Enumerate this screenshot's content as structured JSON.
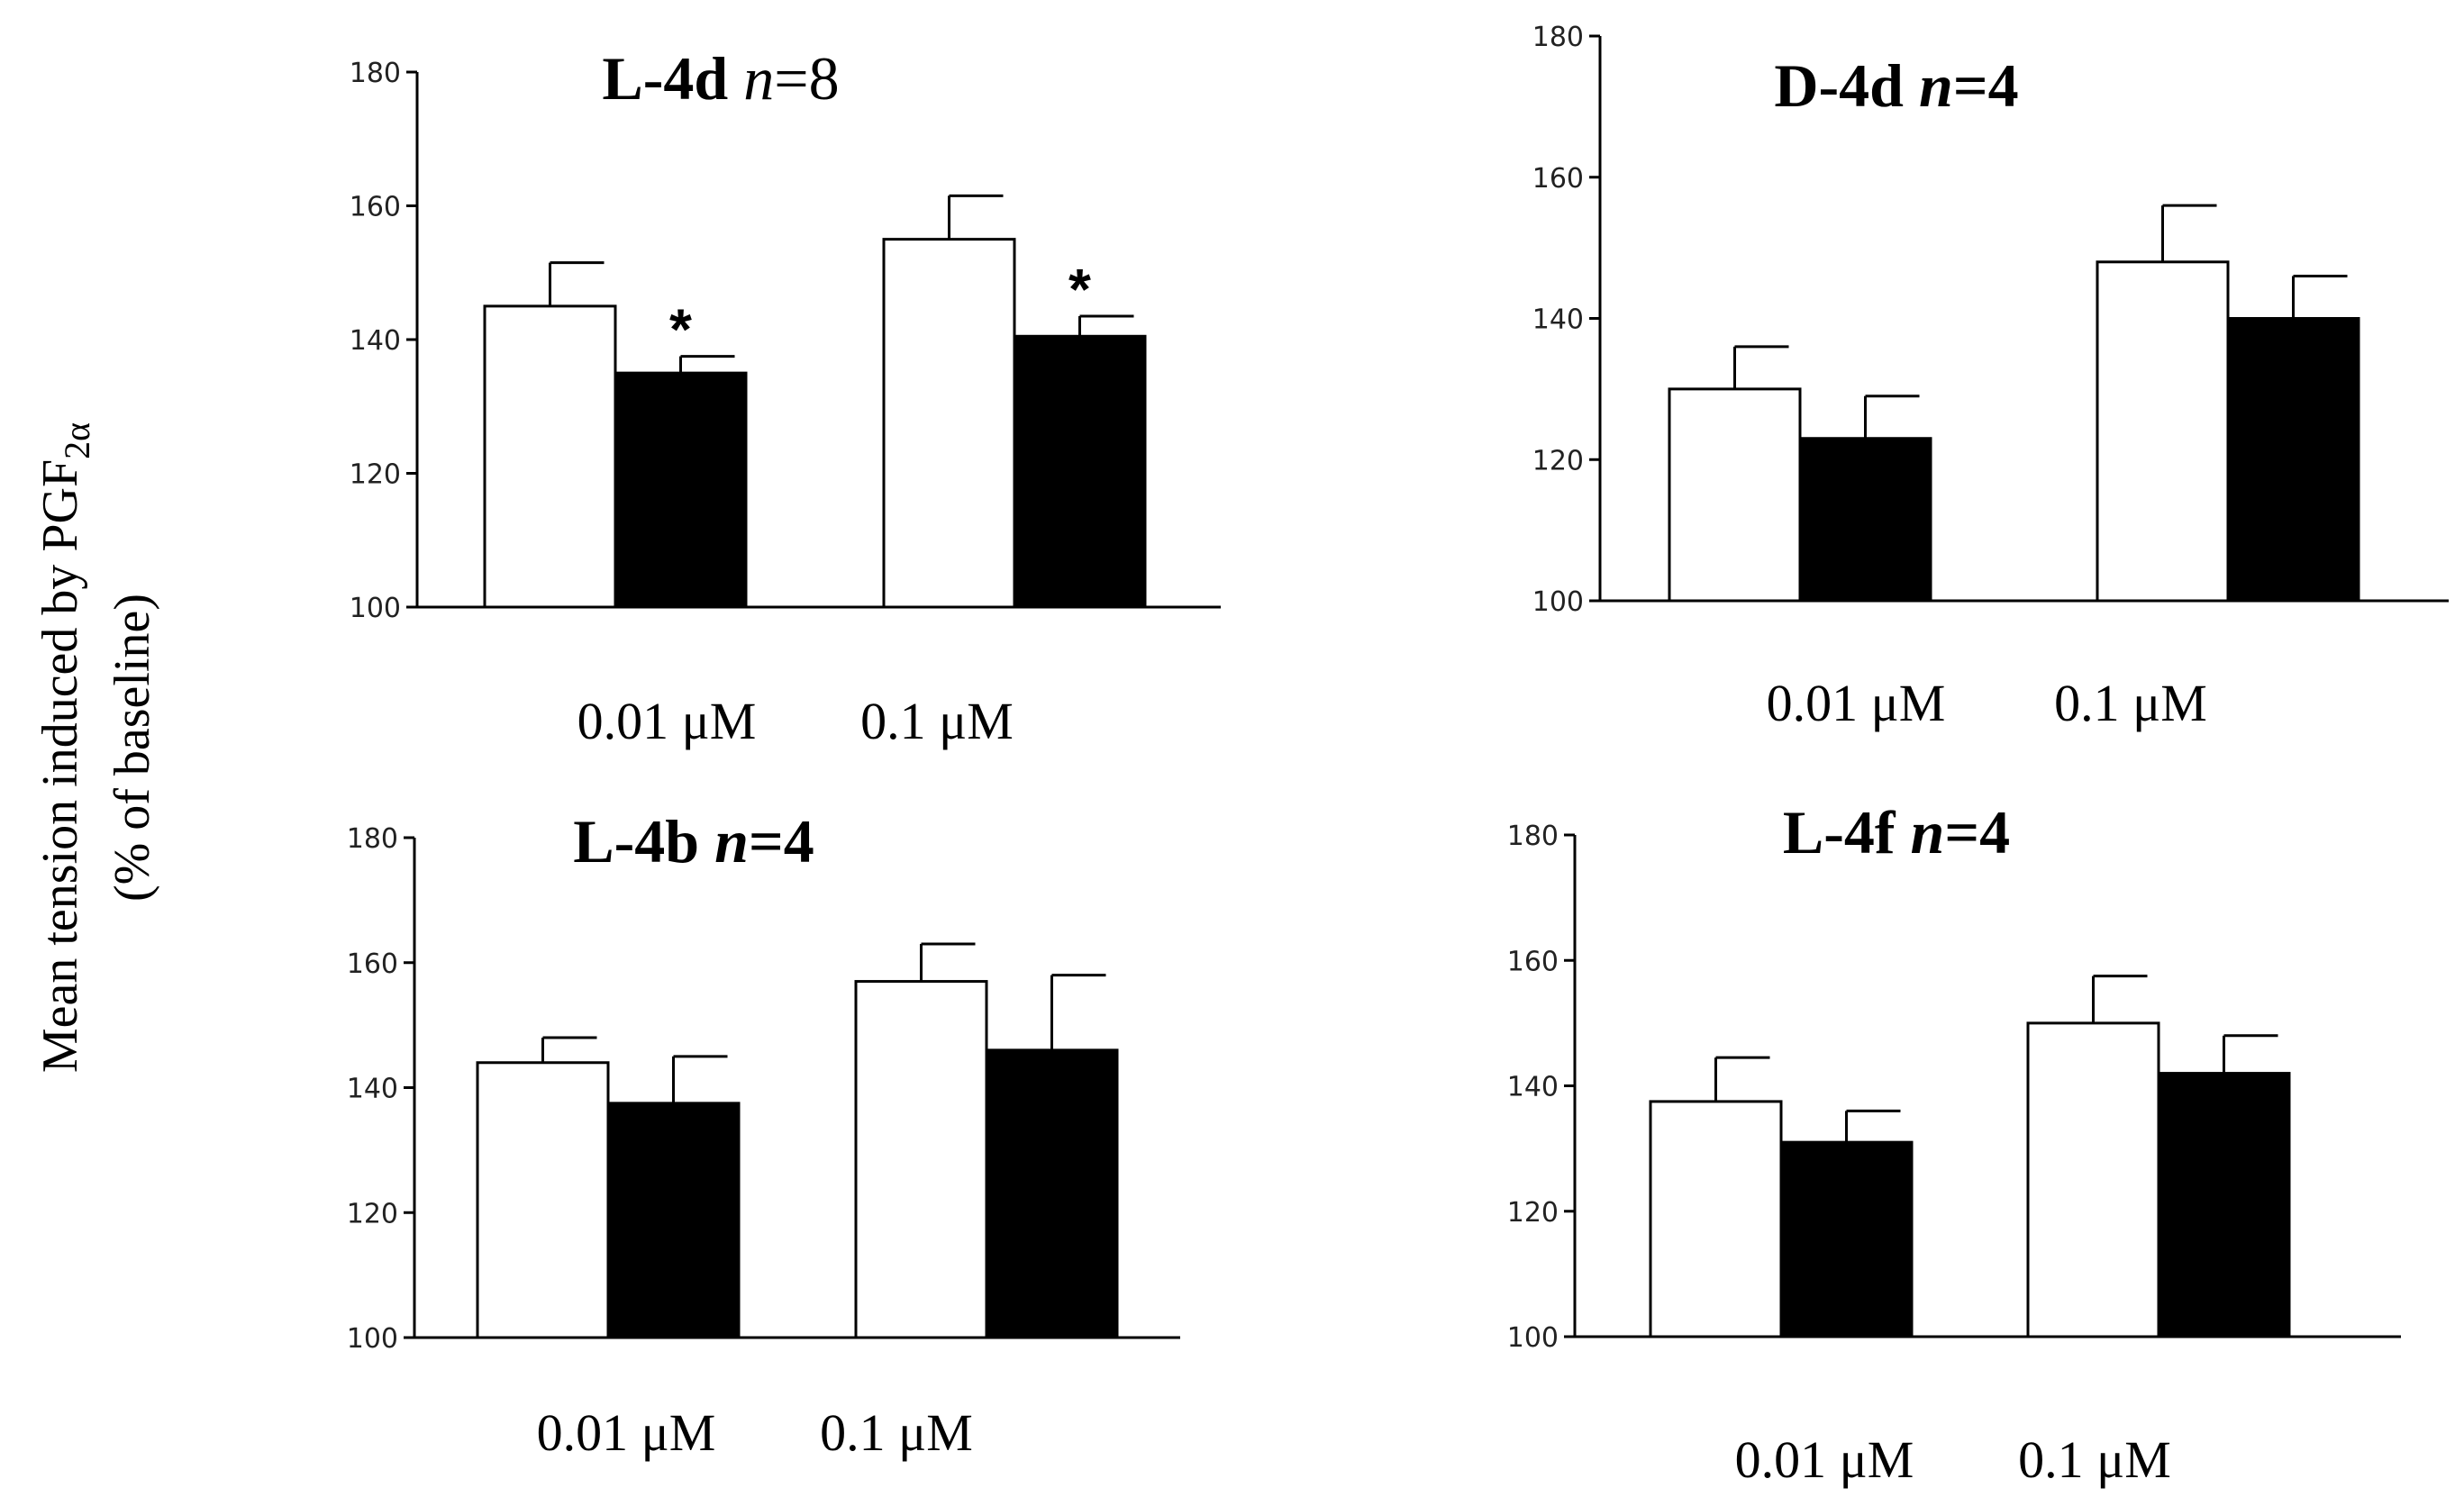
{
  "y_axis_label": {
    "line1_main": "Mean tension induced by PGF",
    "line1_sub": "2α",
    "line2": "(% of baseline)"
  },
  "chart_data": [
    {
      "type": "bar",
      "title": "L-4d",
      "title_n": "n",
      "title_eq": "=8",
      "categories": [
        "0.01 μM",
        "0.1 μM"
      ],
      "ylim": [
        100,
        180
      ],
      "yticks": [
        "100",
        "120",
        "140",
        "160",
        "180"
      ],
      "series": [
        {
          "name": "open",
          "fill": "#ffffff",
          "values": [
            145,
            155
          ],
          "errors": [
            6.5,
            6.5
          ],
          "significant": [
            false,
            false
          ]
        },
        {
          "name": "filled",
          "fill": "#000000",
          "values": [
            135,
            140.5
          ],
          "errors": [
            2.5,
            3
          ],
          "significant": [
            true,
            true
          ]
        }
      ],
      "significance_mark": "*"
    },
    {
      "type": "bar",
      "title": "D-4d",
      "title_n": "n",
      "title_eq": "=4",
      "categories": [
        "0.01 μM",
        "0.1 μM"
      ],
      "ylim": [
        100,
        180
      ],
      "yticks": [
        "100",
        "120",
        "140",
        "160",
        "180"
      ],
      "series": [
        {
          "name": "open",
          "fill": "#ffffff",
          "values": [
            130,
            148
          ],
          "errors": [
            6,
            8
          ],
          "significant": [
            false,
            false
          ]
        },
        {
          "name": "filled",
          "fill": "#000000",
          "values": [
            123,
            140
          ],
          "errors": [
            6,
            6
          ],
          "significant": [
            false,
            false
          ]
        }
      ],
      "significance_mark": "*"
    },
    {
      "type": "bar",
      "title": "L-4b",
      "title_n": "n",
      "title_eq": "=4",
      "categories": [
        "0.01 μM",
        "0.1 μM"
      ],
      "ylim": [
        100,
        180
      ],
      "yticks": [
        "100",
        "120",
        "140",
        "160",
        "180"
      ],
      "series": [
        {
          "name": "open",
          "fill": "#ffffff",
          "values": [
            144,
            157
          ],
          "errors": [
            4,
            6
          ],
          "significant": [
            false,
            false
          ]
        },
        {
          "name": "filled",
          "fill": "#000000",
          "values": [
            137.5,
            146
          ],
          "errors": [
            7.5,
            12
          ],
          "significant": [
            false,
            false
          ]
        }
      ],
      "significance_mark": "*"
    },
    {
      "type": "bar",
      "title": "L-4f",
      "title_n": "n",
      "title_eq": "=4",
      "categories": [
        "0.01 μM",
        "0.1 μM"
      ],
      "ylim": [
        100,
        180
      ],
      "yticks": [
        "100",
        "120",
        "140",
        "160",
        "180"
      ],
      "series": [
        {
          "name": "open",
          "fill": "#ffffff",
          "values": [
            137.5,
            150
          ],
          "errors": [
            7,
            7.5
          ],
          "significant": [
            false,
            false
          ]
        },
        {
          "name": "filled",
          "fill": "#000000",
          "values": [
            131,
            142
          ],
          "errors": [
            5,
            6
          ],
          "significant": [
            false,
            false
          ]
        }
      ],
      "significance_mark": "*"
    }
  ]
}
